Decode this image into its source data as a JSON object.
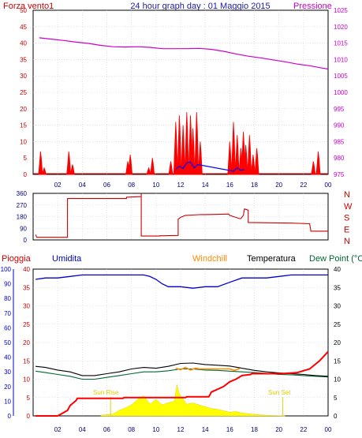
{
  "header": {
    "left_label": "Forza vento1",
    "title": "24 hour graph day : 01 Maggio 2015",
    "right_label": "Pressione"
  },
  "panel2_header": {
    "pioggia": "Pioggia",
    "umidita": "Umidita",
    "windchill": "Windchill",
    "temperatura": "Temperatura",
    "dewpoint": "Dew Point (°C"
  },
  "annotations": {
    "sunrise": "Sun Rise",
    "sunset": "Sun Set"
  },
  "colors": {
    "wind": "#ff0000",
    "gust_dark": "#8b0000",
    "wind_blue": "#0000ff",
    "wind_green": "#008000",
    "pressure": "#cc00cc",
    "direction": "#cc0000",
    "humidity": "#0000cc",
    "temperature": "#000000",
    "dewpoint": "#006633",
    "windchill": "#ff8800",
    "rain": "#ff0000",
    "solar": "#ffff00",
    "grid": "#d0d0d0"
  },
  "x_ticks": [
    "02",
    "04",
    "06",
    "08",
    "10",
    "12",
    "14",
    "16",
    "18",
    "20",
    "22",
    "00"
  ],
  "chart_data": [
    {
      "type": "line",
      "name": "wind_and_pressure",
      "ylim_left": [
        0,
        50
      ],
      "yticks_left": [
        0,
        5,
        10,
        15,
        20,
        25,
        30,
        35,
        40,
        45,
        50
      ],
      "ylim_right": [
        975,
        1025
      ],
      "yticks_right": [
        975,
        980,
        985,
        990,
        995,
        1000,
        1005,
        1010,
        1015,
        1020,
        1025
      ],
      "pressure": {
        "x": [
          0.5,
          1.5,
          2.5,
          3.5,
          4.5,
          5.5,
          6.5,
          7.5,
          8.5,
          9.5,
          10.5,
          11.5,
          12.5,
          13.5,
          14.5,
          15.5,
          16.5,
          17.5,
          18.5,
          19.5,
          20.5,
          21.5,
          22.5,
          23.5,
          24
        ],
        "y": [
          1016.6,
          1016.2,
          1015.8,
          1015.3,
          1014.9,
          1014.3,
          1013.9,
          1013.8,
          1013.9,
          1013.7,
          1013.3,
          1013.3,
          1013.3,
          1013.4,
          1013.1,
          1012.5,
          1011.7,
          1011.0,
          1010.5,
          1009.9,
          1009.3,
          1008.6,
          1008.1,
          1007.4,
          1007.1
        ]
      },
      "wind_bursts": [
        {
          "x": 0.6,
          "peak": 7
        },
        {
          "x": 0.9,
          "peak": 2
        },
        {
          "x": 2.9,
          "peak": 7
        },
        {
          "x": 3.2,
          "peak": 3
        },
        {
          "x": 7.7,
          "peak": 4
        },
        {
          "x": 7.9,
          "peak": 6
        },
        {
          "x": 9.4,
          "peak": 2
        },
        {
          "x": 9.7,
          "peak": 5
        },
        {
          "x": 11.2,
          "peak": 4
        },
        {
          "x": 11.6,
          "peak": 16
        },
        {
          "x": 11.9,
          "peak": 18
        },
        {
          "x": 12.2,
          "peak": 15
        },
        {
          "x": 12.5,
          "peak": 19
        },
        {
          "x": 12.8,
          "peak": 18
        },
        {
          "x": 13.0,
          "peak": 14
        },
        {
          "x": 13.3,
          "peak": 19
        },
        {
          "x": 13.6,
          "peak": 10
        },
        {
          "x": 16.0,
          "peak": 10
        },
        {
          "x": 16.3,
          "peak": 16
        },
        {
          "x": 16.6,
          "peak": 12
        },
        {
          "x": 16.9,
          "peak": 8
        },
        {
          "x": 17.1,
          "peak": 13
        },
        {
          "x": 17.3,
          "peak": 9
        },
        {
          "x": 17.6,
          "peak": 12
        },
        {
          "x": 17.9,
          "peak": 6
        },
        {
          "x": 18.2,
          "peak": 8
        },
        {
          "x": 22.8,
          "peak": 4
        },
        {
          "x": 23.2,
          "peak": 7
        }
      ],
      "wind_avg": {
        "x": [
          11.6,
          11.9,
          12.2,
          12.5,
          12.8,
          13.1,
          13.4,
          16.3,
          16.6,
          16.9,
          17.2
        ],
        "y": [
          1.5,
          2.5,
          1.8,
          3.5,
          3.8,
          2.0,
          3.0,
          1.0,
          2.0,
          1.2,
          1.5
        ]
      }
    },
    {
      "type": "line",
      "name": "wind_direction",
      "ylim": [
        0,
        360
      ],
      "yticks": [
        0,
        90,
        180,
        270,
        360
      ],
      "right_labels": [
        "N",
        "W",
        "S",
        "E",
        "N"
      ],
      "x": [
        0.2,
        0.3,
        2.8,
        2.8,
        7.6,
        7.6,
        8.8,
        8.8,
        8.8,
        10.3,
        10.3,
        11.8,
        11.8,
        12.0,
        12.4,
        13.5,
        14.0,
        15.2,
        15.9,
        16.0,
        16.8,
        16.9,
        17.1,
        17.2,
        17.5,
        17.5,
        21.0,
        22.5,
        22.6,
        24
      ],
      "y": [
        40,
        20,
        20,
        320,
        320,
        330,
        335,
        360,
        30,
        30,
        32,
        35,
        160,
        175,
        190,
        195,
        196,
        198,
        200,
        190,
        165,
        165,
        190,
        240,
        230,
        135,
        130,
        125,
        68,
        68
      ]
    },
    {
      "type": "line",
      "name": "rain_humidity_temperature",
      "ylim_left_outer": [
        0,
        100
      ],
      "yticks_left_outer": [
        0,
        10,
        20,
        30,
        40,
        50,
        60,
        70,
        80,
        90,
        100
      ],
      "ylim_left_inner": [
        0,
        40
      ],
      "yticks_left_inner": [
        0,
        5,
        10,
        15,
        20,
        25,
        30,
        35,
        40
      ],
      "ylim_right": [
        0,
        40
      ],
      "yticks_right": [
        0,
        5,
        10,
        15,
        20,
        25,
        30,
        35,
        40
      ],
      "humidity": {
        "x": [
          0.2,
          1,
          2,
          3,
          4,
          5,
          6,
          7,
          8,
          9,
          9.5,
          10,
          10.5,
          11,
          12,
          13,
          14,
          15,
          16,
          17,
          18,
          19,
          20,
          21,
          22,
          23,
          24
        ],
        "y": [
          93,
          94,
          94,
          95,
          96,
          96,
          96,
          96,
          96,
          96,
          95,
          93,
          90,
          88,
          88,
          87,
          88,
          88,
          91,
          94,
          94,
          94,
          95,
          96,
          96,
          96,
          96
        ]
      },
      "temperature": {
        "x": [
          0.2,
          1,
          2,
          3,
          4,
          5,
          6,
          7,
          8,
          9,
          10,
          11,
          12,
          13,
          14,
          15,
          16,
          17,
          18,
          19,
          20,
          21,
          22,
          23,
          24
        ],
        "y": [
          13.5,
          13.2,
          12.5,
          12.0,
          11.0,
          11.0,
          11.5,
          12.0,
          12.8,
          13.2,
          13.0,
          13.5,
          14.3,
          14.4,
          14.0,
          13.8,
          13.6,
          13.0,
          12.4,
          12.0,
          11.7,
          11.5,
          11.3,
          11.0,
          10.8
        ]
      },
      "dewpoint": {
        "x": [
          0.2,
          1,
          2,
          3,
          4,
          5,
          6,
          7,
          8,
          9,
          10,
          11,
          12,
          13,
          14,
          15,
          16,
          17,
          18,
          19,
          20,
          21,
          22,
          23,
          24
        ],
        "y": [
          12.2,
          11.8,
          11.3,
          10.8,
          10.0,
          10.0,
          10.5,
          11.0,
          11.5,
          12.0,
          12.0,
          12.3,
          12.8,
          12.8,
          12.5,
          12.4,
          12.2,
          12.0,
          11.8,
          11.6,
          11.3,
          11.2,
          11.0,
          10.8,
          10.6
        ]
      },
      "windchill": {
        "x": [
          11.6,
          12.0,
          12.4,
          12.8,
          13.2,
          13.6,
          16.0,
          16.4,
          16.8
        ],
        "y": [
          13.0,
          12.6,
          13.2,
          12.5,
          13.0,
          12.8,
          12.8,
          12.4,
          12.9
        ]
      },
      "rain": {
        "x": [
          0.2,
          2.0,
          2.8,
          3.0,
          3.5,
          3.6,
          7.3,
          7.4,
          12.4,
          12.5,
          14.3,
          14.5,
          15.5,
          16.0,
          16.5,
          17.0,
          17.7,
          17.8,
          20.2,
          21.5,
          22.5,
          23.3,
          24
        ],
        "y": [
          0,
          0,
          1.5,
          2.8,
          4.2,
          4.8,
          4.8,
          5.0,
          5.0,
          5.2,
          5.2,
          6.5,
          8.0,
          9.3,
          10.0,
          11.0,
          11.3,
          11.5,
          11.5,
          11.8,
          12.8,
          15.0,
          17.5
        ]
      },
      "solar": {
        "x": [
          5.5,
          6.5,
          7.0,
          7.5,
          8.0,
          8.5,
          9.0,
          9.5,
          10.0,
          10.5,
          11.0,
          11.5,
          11.7,
          11.9,
          12.1,
          12.3,
          12.5,
          13.0,
          13.5,
          14.0,
          14.5,
          15.0,
          15.5,
          16.0,
          16.5,
          17.0,
          17.5,
          18.0,
          18.5,
          19.0,
          19.5,
          20.5
        ],
        "y": [
          0.2,
          0.5,
          1.5,
          2.2,
          3.0,
          4.5,
          5.5,
          3.2,
          4.5,
          3.0,
          3.6,
          4.0,
          8.5,
          6.0,
          5.0,
          4.2,
          3.2,
          3.5,
          3.0,
          2.5,
          2.0,
          1.8,
          1.4,
          1.0,
          1.2,
          0.8,
          0.6,
          0.4,
          0.3,
          0.2,
          0.1,
          0.0
        ]
      }
    }
  ]
}
